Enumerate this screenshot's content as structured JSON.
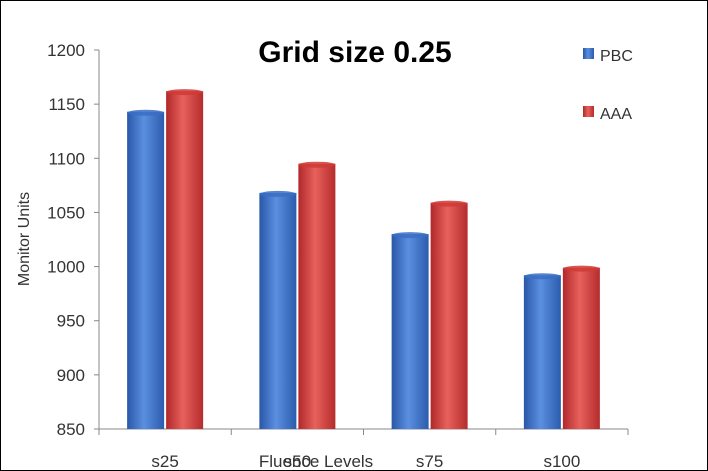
{
  "chart_data": {
    "type": "bar",
    "title": "Grid size 0.25",
    "xlabel": "Fluence Levels",
    "ylabel": "Monitor Units",
    "categories": [
      "s25",
      "s50",
      "s75",
      "s100"
    ],
    "series": [
      {
        "name": "PBC",
        "color": "#3a6fc4",
        "values": [
          1143,
          1068,
          1030,
          992
        ]
      },
      {
        "name": "AAA",
        "color": "#d03a35",
        "values": [
          1162,
          1095,
          1059,
          999
        ]
      }
    ],
    "ylim": [
      850,
      1200
    ],
    "yticks": [
      "850",
      "900",
      "950",
      "1000",
      "1050",
      "1100",
      "1150",
      "1200"
    ],
    "grid": false,
    "legend_position": "right"
  }
}
